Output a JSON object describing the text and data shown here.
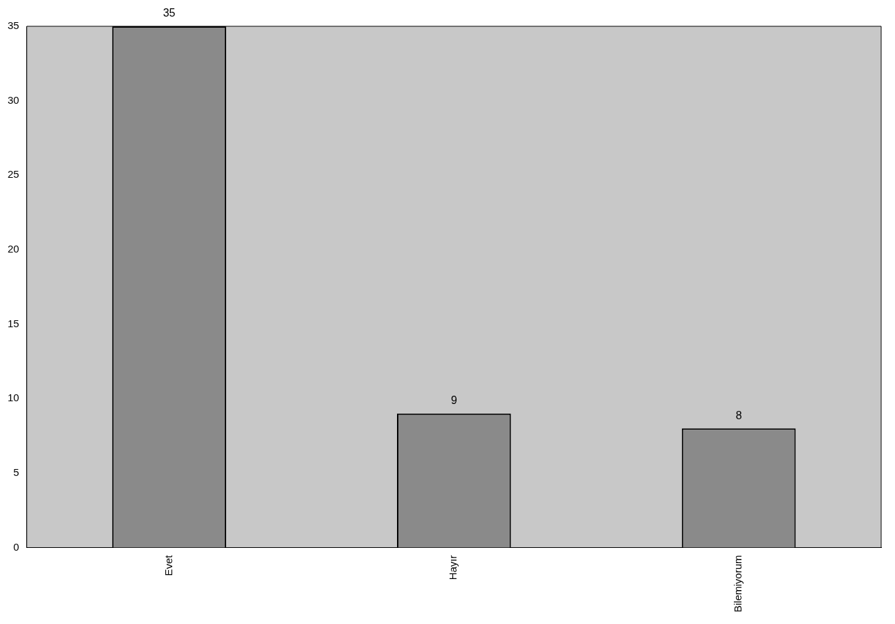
{
  "chart_data": {
    "type": "bar",
    "categories": [
      "Evet",
      "Hayır",
      "Bilemiyorum"
    ],
    "values": [
      35,
      9,
      8
    ],
    "color": "#8a8a8a",
    "ylim": [
      0,
      35
    ],
    "yticks": [
      0,
      5,
      10,
      15,
      20,
      25,
      30,
      35
    ],
    "grid": false,
    "legend": false,
    "data_labels": true
  }
}
